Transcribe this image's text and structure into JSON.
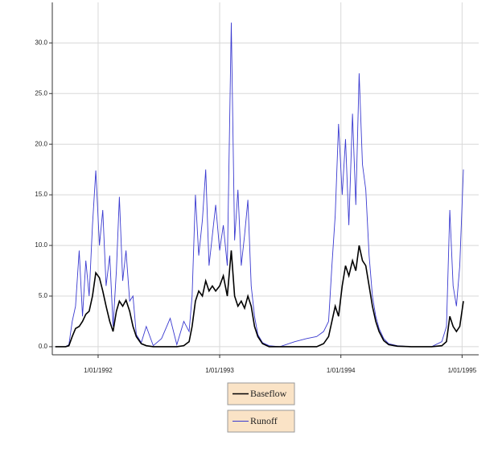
{
  "chart_data": {
    "type": "line",
    "x": [
      "1991-08-25",
      "1991-09-25",
      "1991-10-05",
      "1991-10-15",
      "1991-10-25",
      "1991-11-05",
      "1991-11-15",
      "1991-11-25",
      "1991-12-05",
      "1991-12-15",
      "1991-12-25",
      "1992-01-05",
      "1992-01-15",
      "1992-01-25",
      "1992-02-05",
      "1992-02-15",
      "1992-02-25",
      "1992-03-05",
      "1992-03-15",
      "1992-03-25",
      "1992-04-05",
      "1992-04-15",
      "1992-04-25",
      "1992-05-10",
      "1992-05-25",
      "1992-06-15",
      "1992-07-10",
      "1992-08-05",
      "1992-08-25",
      "1992-09-15",
      "1992-10-01",
      "1992-10-10",
      "1992-10-20",
      "1992-10-30",
      "1992-11-10",
      "1992-11-20",
      "1992-11-30",
      "1992-12-10",
      "1992-12-20",
      "1993-01-01",
      "1993-01-12",
      "1993-01-24",
      "1993-02-05",
      "1993-02-15",
      "1993-02-25",
      "1993-03-07",
      "1993-03-17",
      "1993-03-27",
      "1993-04-06",
      "1993-04-16",
      "1993-04-26",
      "1993-05-10",
      "1993-05-30",
      "1993-07-01",
      "1993-08-15",
      "1993-09-20",
      "1993-10-20",
      "1993-11-10",
      "1993-11-25",
      "1993-12-05",
      "1993-12-15",
      "1993-12-25",
      "1994-01-05",
      "1994-01-15",
      "1994-01-25",
      "1994-02-05",
      "1994-02-15",
      "1994-02-25",
      "1994-03-07",
      "1994-03-17",
      "1994-03-27",
      "1994-04-06",
      "1994-04-16",
      "1994-04-26",
      "1994-05-10",
      "1994-05-25",
      "1994-06-20",
      "1994-08-01",
      "1994-10-01",
      "1994-11-01",
      "1994-11-15",
      "1994-11-25",
      "1994-12-05",
      "1994-12-15",
      "1994-12-25",
      "1995-01-05"
    ],
    "series": [
      {
        "name": "Baseflow",
        "color": "#000000",
        "values": [
          0,
          0,
          0.1,
          1.0,
          1.8,
          2.0,
          2.5,
          3.2,
          3.5,
          5.0,
          7.3,
          6.8,
          5.5,
          4.0,
          2.5,
          1.5,
          3.5,
          4.5,
          4.0,
          4.6,
          3.5,
          2.0,
          1.0,
          0.3,
          0.1,
          0,
          0,
          0,
          0,
          0.1,
          0.5,
          2.0,
          4.5,
          5.5,
          5.0,
          6.5,
          5.5,
          6.0,
          5.5,
          6.0,
          7.0,
          5.0,
          9.5,
          5.0,
          4.0,
          4.5,
          3.8,
          5.0,
          4.0,
          2.0,
          1.0,
          0.3,
          0,
          0,
          0,
          0,
          0,
          0.3,
          1.0,
          2.5,
          4.0,
          3.0,
          6.0,
          8.0,
          7.0,
          8.5,
          7.5,
          10.0,
          8.5,
          8.0,
          6.0,
          4.0,
          2.5,
          1.5,
          0.6,
          0.2,
          0.05,
          0,
          0,
          0.1,
          0.5,
          3.0,
          2.0,
          1.5,
          2.0,
          4.5
        ]
      },
      {
        "name": "Runoff",
        "color": "#3a3ad0",
        "values": [
          0,
          0,
          0.2,
          2.5,
          4.0,
          9.5,
          3.0,
          8.5,
          5.0,
          12.0,
          17.4,
          10.0,
          13.5,
          6.0,
          9.0,
          2.0,
          7.5,
          14.8,
          6.5,
          9.5,
          4.5,
          5.0,
          1.2,
          0.4,
          2.0,
          0.1,
          0.8,
          2.8,
          0.2,
          2.5,
          1.5,
          5.0,
          15.0,
          9.0,
          12.5,
          17.5,
          8.0,
          11.0,
          14.0,
          9.5,
          12.0,
          8.0,
          32.0,
          10.5,
          15.5,
          8.0,
          11.0,
          14.5,
          6.0,
          3.0,
          1.2,
          0.4,
          0.1,
          0,
          0.5,
          0.8,
          1.0,
          1.5,
          2.5,
          8.0,
          13.0,
          22.0,
          15.0,
          20.5,
          12.0,
          23.0,
          14.0,
          27.0,
          18.0,
          15.5,
          9.0,
          5.0,
          3.0,
          1.8,
          0.8,
          0.3,
          0.1,
          0,
          0,
          0.5,
          2.0,
          13.5,
          6.0,
          4.0,
          8.0,
          17.5
        ]
      }
    ],
    "xlim": [
      "1991-08-16",
      "1995-02-20"
    ],
    "xticks": [
      {
        "value": "1992-01-01",
        "label": "1/01/1992"
      },
      {
        "value": "1993-01-01",
        "label": "1/01/1993"
      },
      {
        "value": "1994-01-01",
        "label": "1/01/1994"
      },
      {
        "value": "1995-01-01",
        "label": "1/01/1995"
      }
    ],
    "ylim": [
      -0.8,
      34
    ],
    "yticks": [
      {
        "value": 0,
        "label": "0.0"
      },
      {
        "value": 5,
        "label": "5.0"
      },
      {
        "value": 10,
        "label": "10.0"
      },
      {
        "value": 15,
        "label": "15.0"
      },
      {
        "value": 20,
        "label": "20.0"
      },
      {
        "value": 25,
        "label": "25.0"
      },
      {
        "value": 30,
        "label": "30.0"
      }
    ],
    "grid": true
  }
}
